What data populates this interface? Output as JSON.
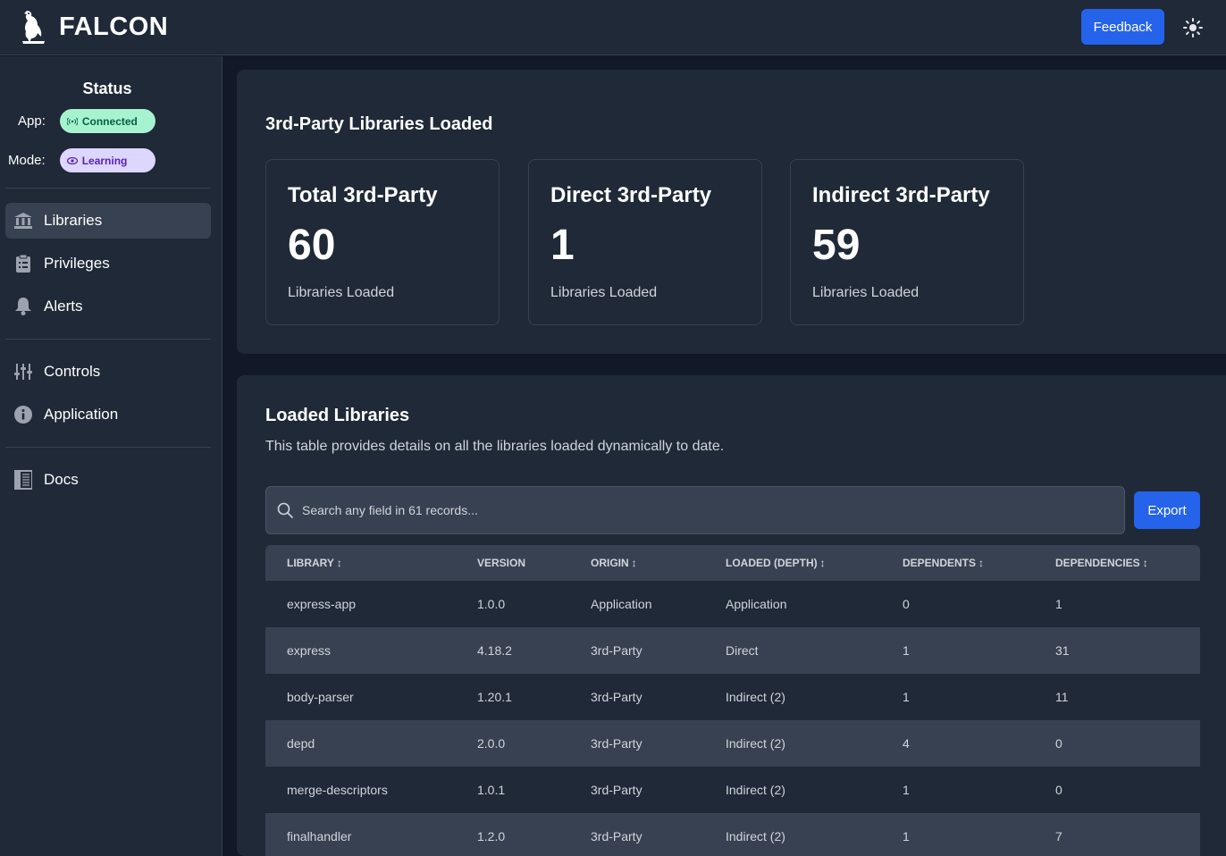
{
  "app": {
    "name": "FALCON"
  },
  "header": {
    "feedback_label": "Feedback",
    "theme_icon": "sun-icon"
  },
  "sidebar": {
    "status_title": "Status",
    "app_label": "App:",
    "app_status": "Connected",
    "mode_label": "Mode:",
    "mode_status": "Learning",
    "nav": [
      {
        "label": "Libraries",
        "icon": "bank-icon",
        "active": true
      },
      {
        "label": "Privileges",
        "icon": "clipboard-list-icon"
      },
      {
        "label": "Alerts",
        "icon": "bell-icon"
      },
      {
        "label": "Controls",
        "icon": "sliders-icon"
      },
      {
        "label": "Application",
        "icon": "info-icon"
      },
      {
        "label": "Docs",
        "icon": "book-icon"
      }
    ]
  },
  "summary": {
    "title": "3rd-Party Libraries Loaded",
    "cards": [
      {
        "title": "Total 3rd-Party",
        "value": "60",
        "sub": "Libraries Loaded"
      },
      {
        "title": "Direct 3rd-Party",
        "value": "1",
        "sub": "Libraries Loaded"
      },
      {
        "title": "Indirect 3rd-Party",
        "value": "59",
        "sub": "Libraries Loaded"
      }
    ]
  },
  "loaded": {
    "title": "Loaded Libraries",
    "description": "This table provides details on all the libraries loaded dynamically to date.",
    "search_placeholder": "Search any field in 61 records...",
    "export_label": "Export",
    "columns": [
      {
        "label": "LIBRARY",
        "sort": "↕"
      },
      {
        "label": "VERSION",
        "sort": ""
      },
      {
        "label": "ORIGIN",
        "sort": "↕"
      },
      {
        "label": "LOADED (DEPTH)",
        "sort": "↕"
      },
      {
        "label": "DEPENDENTS",
        "sort": "↕"
      },
      {
        "label": "DEPENDENCIES",
        "sort": "↕"
      }
    ],
    "rows": [
      [
        "express-app",
        "1.0.0",
        "Application",
        "Application",
        "0",
        "1"
      ],
      [
        "express",
        "4.18.2",
        "3rd-Party",
        "Direct",
        "1",
        "31"
      ],
      [
        "body-parser",
        "1.20.1",
        "3rd-Party",
        "Indirect (2)",
        "1",
        "11"
      ],
      [
        "depd",
        "2.0.0",
        "3rd-Party",
        "Indirect (2)",
        "4",
        "0"
      ],
      [
        "merge-descriptors",
        "1.0.1",
        "3rd-Party",
        "Indirect (2)",
        "1",
        "0"
      ],
      [
        "finalhandler",
        "1.2.0",
        "3rd-Party",
        "Indirect (2)",
        "1",
        "7"
      ]
    ]
  }
}
